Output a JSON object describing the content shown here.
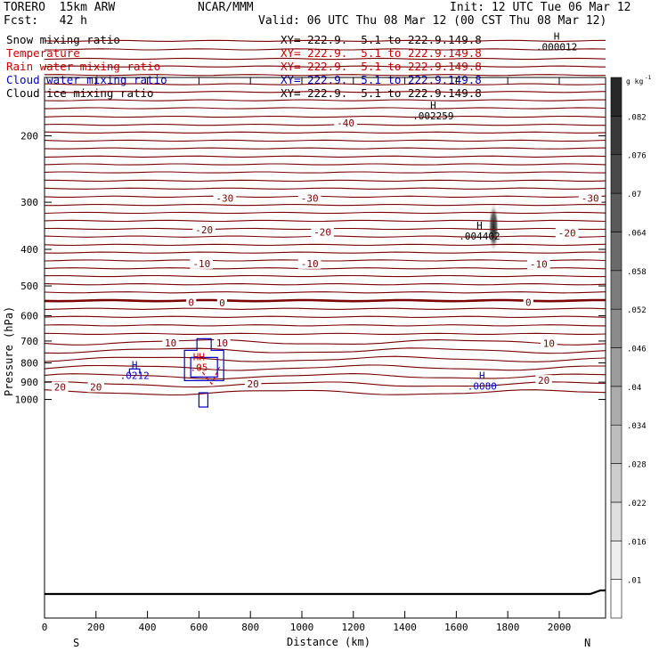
{
  "header": {
    "model": "TORERO  15km ARW",
    "center": "NCAR/MMM",
    "init": "Init: 12 UTC Tue 06 Mar 12",
    "fcst": "Fcst:   42 h",
    "valid": "Valid: 06 UTC Thu 08 Mar 12 (00 CST Thu 08 Mar 12)"
  },
  "legend": [
    {
      "name": "Snow mixing ratio",
      "xy": "XY= 222.9.  5.1 to 222.9.149.8",
      "color": "#000000"
    },
    {
      "name": "Temperature",
      "xy": "XY= 222.9.  5.1 to 222.9.149.8",
      "color": "#cc0000"
    },
    {
      "name": "Rain water mixing ratio",
      "xy": "XY= 222.9.  5.1 to 222.9.149.8",
      "color": "#cc0000"
    },
    {
      "name": "Cloud water mixing ratio",
      "xy": "XY= 222.9.  5.1 to 222.9.149.8",
      "color": "#0000cc"
    },
    {
      "name": "Cloud ice mixing ratio",
      "xy": "XY= 222.9.  5.1 to 222.9.149.8",
      "color": "#000000"
    }
  ],
  "colors": {
    "temperature": "#7a0000",
    "cloud_water": "#0000cc",
    "rain": "#cc0000",
    "frame": "#000000"
  },
  "chart_data": {
    "type": "line",
    "title": "",
    "xlabel": "Distance (km)",
    "ylabel": "Pressure (hPa)",
    "xlim": [
      0,
      2180
    ],
    "ylim": [
      1050,
      100
    ],
    "y_scale": "log-pressure",
    "x_ticks": [
      0,
      200,
      400,
      600,
      800,
      1000,
      1200,
      1400,
      1600,
      1800,
      2000
    ],
    "x_tick_labels": [
      "0",
      "200",
      "400",
      "600",
      "800",
      "1000",
      "1200",
      "1400",
      "1600",
      "1800",
      "2000"
    ],
    "y_ticks": [
      200,
      300,
      400,
      500,
      600,
      700,
      800,
      900,
      1000
    ],
    "y_tick_labels": [
      "200",
      "300",
      "400",
      "500",
      "600",
      "700",
      "800",
      "900",
      "1000"
    ],
    "end_labels": {
      "left": "S",
      "right": "N"
    },
    "temperature_contour_labels": [
      {
        "text": "-40",
        "x": 1170,
        "p": 185
      },
      {
        "text": "-30",
        "x": 700,
        "p": 293
      },
      {
        "text": "-30",
        "x": 1030,
        "p": 293
      },
      {
        "text": "-30",
        "x": 2120,
        "p": 293
      },
      {
        "text": "-20",
        "x": 620,
        "p": 355
      },
      {
        "text": "-20",
        "x": 1080,
        "p": 360
      },
      {
        "text": "-20",
        "x": 2030,
        "p": 362
      },
      {
        "text": "-10",
        "x": 610,
        "p": 436
      },
      {
        "text": "-10",
        "x": 1030,
        "p": 436
      },
      {
        "text": "-10",
        "x": 1920,
        "p": 437
      },
      {
        "text": "0",
        "x": 570,
        "p": 553
      },
      {
        "text": "0",
        "x": 690,
        "p": 555
      },
      {
        "text": "0",
        "x": 1880,
        "p": 553
      },
      {
        "text": "10",
        "x": 490,
        "p": 707
      },
      {
        "text": "10",
        "x": 690,
        "p": 707
      },
      {
        "text": "10",
        "x": 1960,
        "p": 710
      },
      {
        "text": "20",
        "x": 60,
        "p": 926
      },
      {
        "text": "20",
        "x": 200,
        "p": 926
      },
      {
        "text": "20",
        "x": 810,
        "p": 910
      },
      {
        "text": "20",
        "x": 1940,
        "p": 890
      }
    ],
    "max_labels": [
      {
        "mark": "H",
        "value": ".000012",
        "x": 1990,
        "p": 115,
        "color": "#000000"
      },
      {
        "mark": "H",
        "value": ".002259",
        "x": 1510,
        "p": 175,
        "color": "#000000"
      },
      {
        "mark": "H",
        "value": ".004402",
        "x": 1690,
        "p": 365,
        "color": "#000000"
      },
      {
        "mark": "HH",
        "value": ".05",
        "x": 600,
        "p": 813,
        "color": "#cc0000"
      },
      {
        "mark": "H",
        "value": ".0212",
        "x": 350,
        "p": 855,
        "color": "#0000cc"
      },
      {
        "mark": "H",
        "value": ".0080",
        "x": 1700,
        "p": 912,
        "color": "#0000cc"
      }
    ],
    "colorbar": {
      "unit": "g kg",
      "unit_exponent": "-1",
      "levels": [
        ".01",
        ".016",
        ".022",
        ".028",
        ".034",
        ".04",
        ".046",
        ".052",
        ".058",
        ".064",
        ".07",
        ".076",
        ".082"
      ]
    }
  }
}
